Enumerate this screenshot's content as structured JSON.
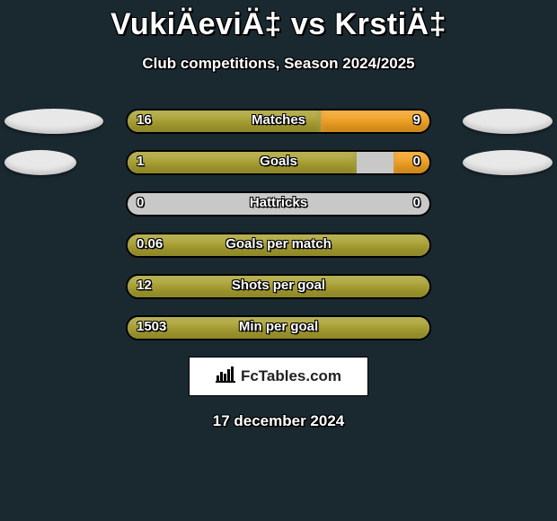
{
  "title": "VukiÄeviÄ‡ vs KrstiÄ‡",
  "subtitle": "Club competitions, Season 2024/2025",
  "date": "17 december 2024",
  "brand": "FcTables.com",
  "colors": {
    "background": "#1a2930",
    "bar_left": "#a8a030",
    "bar_right": "#f0a020",
    "bar_track": "#c8c8c8",
    "ellipse": "#e8e8e8",
    "brand_bg": "#ffffff"
  },
  "ellipse_widths": {
    "left1": 110,
    "right1": 100,
    "left2": 80,
    "right2": 100
  },
  "rows": [
    {
      "metric": "Matches",
      "left_val": "16",
      "right_val": "9",
      "left_pct": 64,
      "right_pct": 36,
      "show_left_ellipse": true,
      "show_right_ellipse": true
    },
    {
      "metric": "Goals",
      "left_val": "1",
      "right_val": "0",
      "left_pct": 76,
      "right_pct": 12,
      "show_left_ellipse": true,
      "show_right_ellipse": true
    },
    {
      "metric": "Hattricks",
      "left_val": "0",
      "right_val": "0",
      "left_pct": 0,
      "right_pct": 0,
      "show_left_ellipse": false,
      "show_right_ellipse": false
    },
    {
      "metric": "Goals per match",
      "left_val": "0.06",
      "right_val": "",
      "left_pct": 100,
      "right_pct": 0,
      "show_left_ellipse": false,
      "show_right_ellipse": false
    },
    {
      "metric": "Shots per goal",
      "left_val": "12",
      "right_val": "",
      "left_pct": 100,
      "right_pct": 0,
      "show_left_ellipse": false,
      "show_right_ellipse": false
    },
    {
      "metric": "Min per goal",
      "left_val": "1503",
      "right_val": "",
      "left_pct": 100,
      "right_pct": 0,
      "show_left_ellipse": false,
      "show_right_ellipse": false
    }
  ]
}
